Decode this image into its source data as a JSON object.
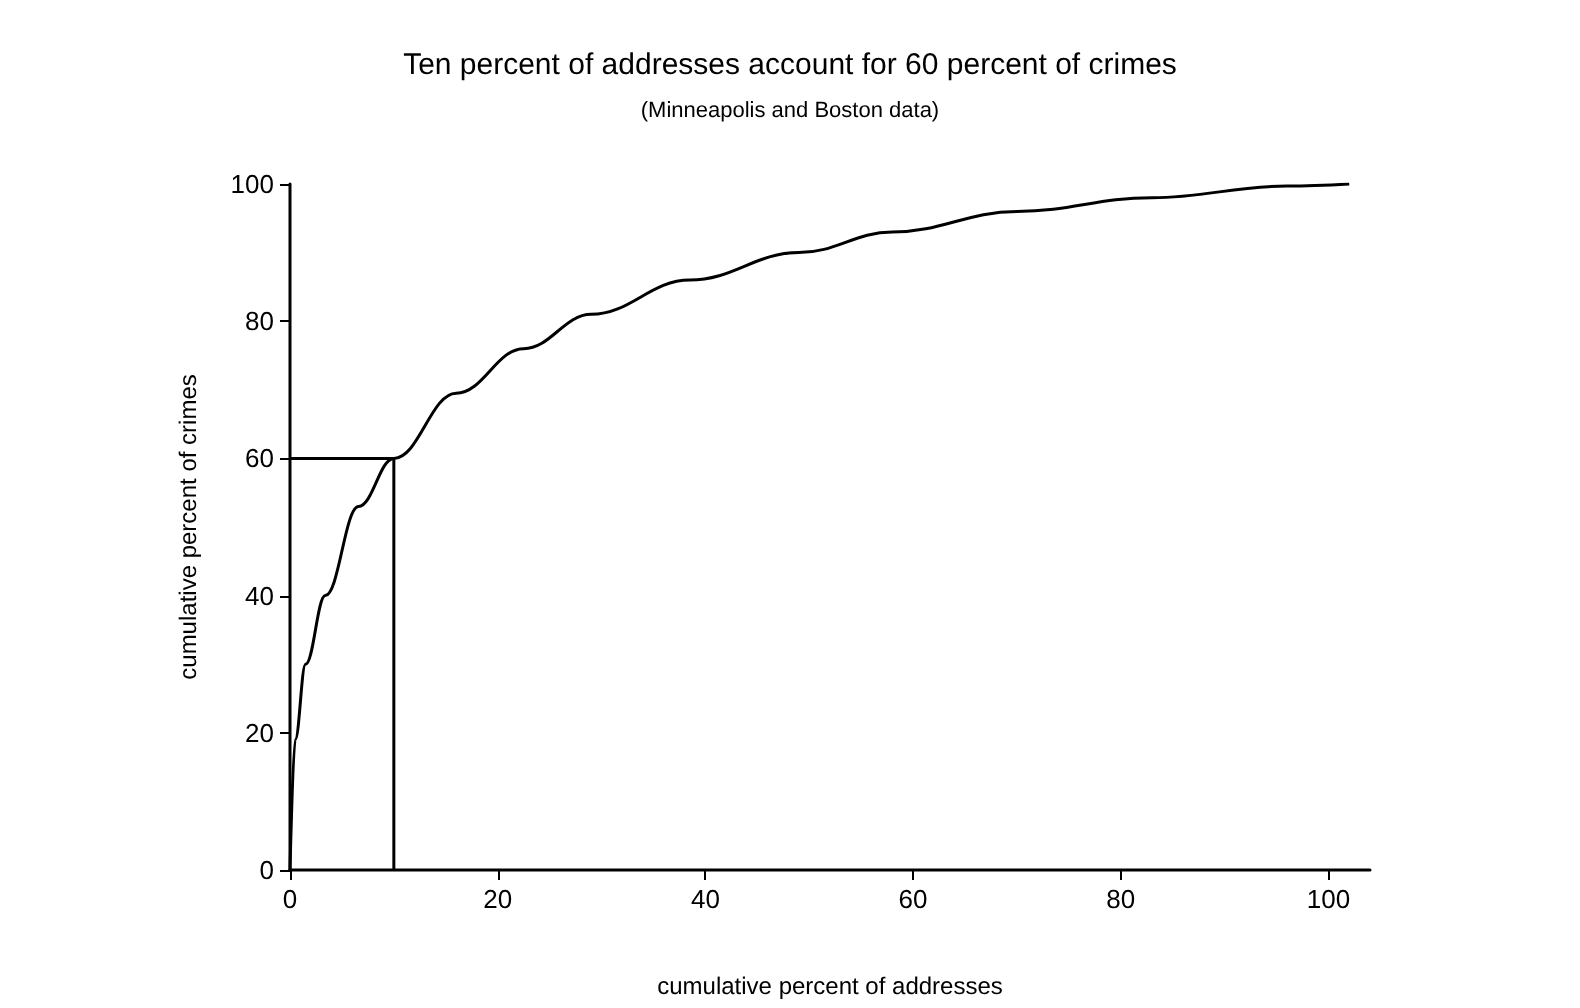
{
  "chart_data": {
    "type": "line",
    "title": "Ten percent of addresses account for 60 percent of crimes",
    "subtitle": "(Minneapolis and Boston data)",
    "xlabel": "cumulative percent of addresses",
    "ylabel": "cumulative percent of crimes",
    "series": [
      {
        "color": "#000000",
        "x": [
          0,
          0.5,
          1.5,
          3.4,
          6.6,
          10,
          16,
          22.5,
          29,
          38.5,
          49,
          58,
          70,
          83,
          96,
          102
        ],
        "values": [
          0,
          19,
          30,
          40,
          53,
          60,
          69.5,
          76,
          81,
          86,
          90,
          93,
          96,
          98,
          99.7,
          100
        ]
      },
      {
        "color": "#000000",
        "x": [
          0,
          10,
          10
        ],
        "values": [
          60,
          60,
          0
        ]
      }
    ],
    "xlim": [
      0,
      104
    ],
    "xticks": [
      0,
      20,
      40,
      60,
      80,
      100
    ],
    "ylim": [
      0,
      100
    ],
    "yticks": [
      0,
      20,
      40,
      60,
      80,
      100
    ],
    "grid": false,
    "marker": "none",
    "line_style": "solid"
  }
}
